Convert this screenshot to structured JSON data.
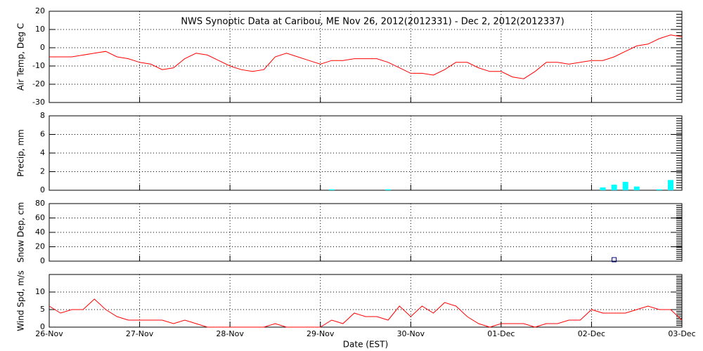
{
  "chart_data": [
    {
      "type": "line",
      "title": "NWS Synoptic Data at Caribou, ME   Nov 26, 2012(2012331) - Dec  2, 2012(2012337)",
      "ylabel": "Air Temp, Deg C",
      "color": "#ff0000",
      "values": [
        -5,
        -5,
        -5,
        -4,
        -3,
        -2,
        -5,
        -6,
        -8,
        -9,
        -12,
        -11,
        -6,
        -3,
        -4,
        -7,
        -10,
        -12,
        -13,
        -12,
        -5,
        -3,
        -5,
        -7,
        -9,
        -7,
        -7,
        -6,
        -6,
        -6,
        -8,
        -11,
        -14,
        -14,
        -15,
        -12,
        -8,
        -8,
        -11,
        -13,
        -13,
        -16,
        -17,
        -13,
        -8,
        -8,
        -9,
        -8,
        -7,
        -7,
        -5,
        -2,
        1,
        2,
        5,
        7,
        6
      ],
      "ylim": [
        -30,
        20
      ],
      "yticks": [
        -30,
        -20,
        -10,
        0,
        10,
        20
      ],
      "grid": true
    },
    {
      "type": "bar",
      "ylabel": "Precip, mm",
      "color": "#00ffff",
      "values": [
        0,
        0,
        0,
        0,
        0,
        0,
        0,
        0,
        0,
        0,
        0,
        0,
        0,
        0,
        0,
        0,
        0,
        0,
        0,
        0,
        0,
        0,
        0,
        0,
        0,
        0.1,
        0,
        0,
        0,
        0,
        0.1,
        0,
        0,
        0,
        0,
        0,
        0,
        0,
        0,
        0,
        0,
        0,
        0,
        0,
        0,
        0,
        0,
        0,
        0,
        0.3,
        0.6,
        0.9,
        0.4,
        0,
        0.1,
        1.1,
        0
      ],
      "ylim": [
        0,
        8
      ],
      "yticks": [
        0,
        2,
        4,
        6,
        8
      ],
      "grid": true
    },
    {
      "type": "scatter",
      "ylabel": "Snow Dep, cm",
      "color": "#000080",
      "values": [
        null,
        null,
        null,
        null,
        null,
        null,
        null,
        null,
        null,
        null,
        null,
        null,
        null,
        null,
        null,
        null,
        null,
        null,
        null,
        null,
        null,
        null,
        null,
        null,
        null,
        null,
        null,
        null,
        null,
        null,
        null,
        null,
        null,
        null,
        null,
        null,
        null,
        null,
        null,
        null,
        null,
        null,
        null,
        null,
        null,
        null,
        null,
        null,
        null,
        null,
        2,
        null,
        null,
        null,
        null,
        null,
        null
      ],
      "ylim": [
        0,
        80
      ],
      "yticks": [
        0,
        20,
        40,
        60,
        80
      ],
      "grid": true
    },
    {
      "type": "line",
      "ylabel": "Wind Spd, m/s",
      "xlabel": "Date (EST)",
      "color": "#ff0000",
      "values": [
        6,
        4,
        5,
        5,
        8,
        5,
        3,
        2,
        2,
        2,
        2,
        1,
        2,
        1,
        0,
        0,
        0,
        0,
        0,
        0,
        1,
        0,
        0,
        0,
        0,
        2,
        1,
        4,
        3,
        3,
        2,
        6,
        3,
        6,
        4,
        7,
        6,
        3,
        1,
        0,
        1,
        1,
        1,
        0,
        1,
        1,
        2,
        2,
        5,
        4,
        4,
        4,
        5,
        6,
        5,
        5,
        2
      ],
      "ylim": [
        0,
        15
      ],
      "yticks": [
        0,
        5,
        10
      ],
      "grid": true,
      "xtick_labels": [
        "26-Nov",
        "27-Nov",
        "28-Nov",
        "29-Nov",
        "30-Nov",
        "01-Dec",
        "02-Dec",
        "03-Dec"
      ]
    }
  ]
}
